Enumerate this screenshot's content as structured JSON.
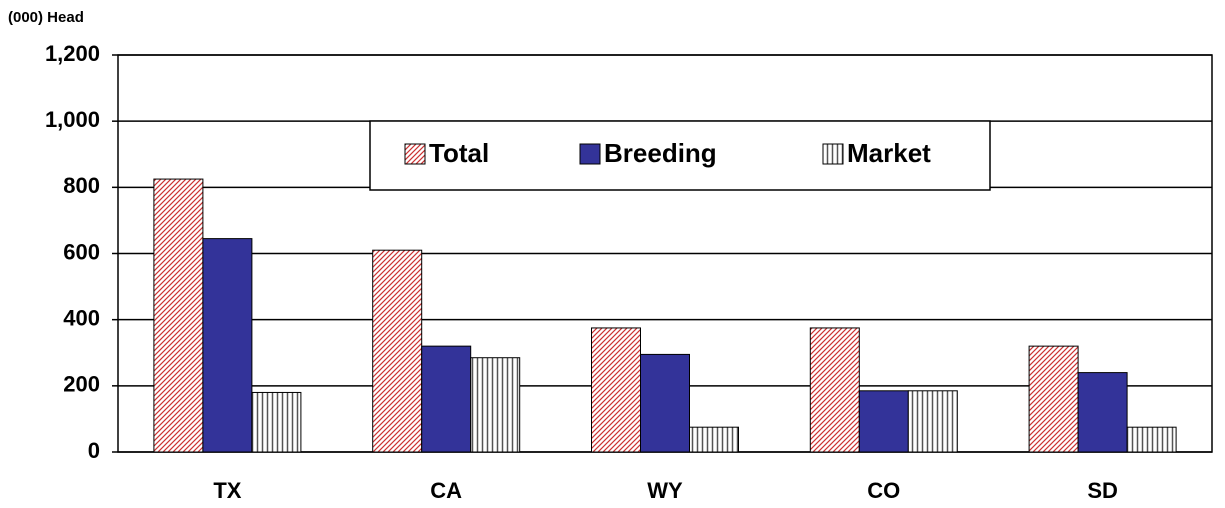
{
  "chart_data": {
    "type": "bar",
    "y_label": "(000) Head",
    "categories": [
      "TX",
      "CA",
      "WY",
      "CO",
      "SD"
    ],
    "series": [
      {
        "name": "Total",
        "color": "#cc3333",
        "pattern": "diagonal",
        "values": [
          825,
          610,
          375,
          375,
          320
        ]
      },
      {
        "name": "Breeding",
        "color": "#333399",
        "pattern": "solid",
        "values": [
          645,
          320,
          295,
          185,
          240
        ]
      },
      {
        "name": "Market",
        "color": "#555555",
        "pattern": "vertical",
        "values": [
          180,
          285,
          75,
          185,
          75
        ]
      }
    ],
    "ylim": [
      0,
      1200
    ],
    "yticks": [
      0,
      200,
      400,
      600,
      800,
      {
        "value": 1000,
        "label": "1,000"
      },
      {
        "value": 1200,
        "label": "1,200"
      }
    ],
    "grid": true
  }
}
